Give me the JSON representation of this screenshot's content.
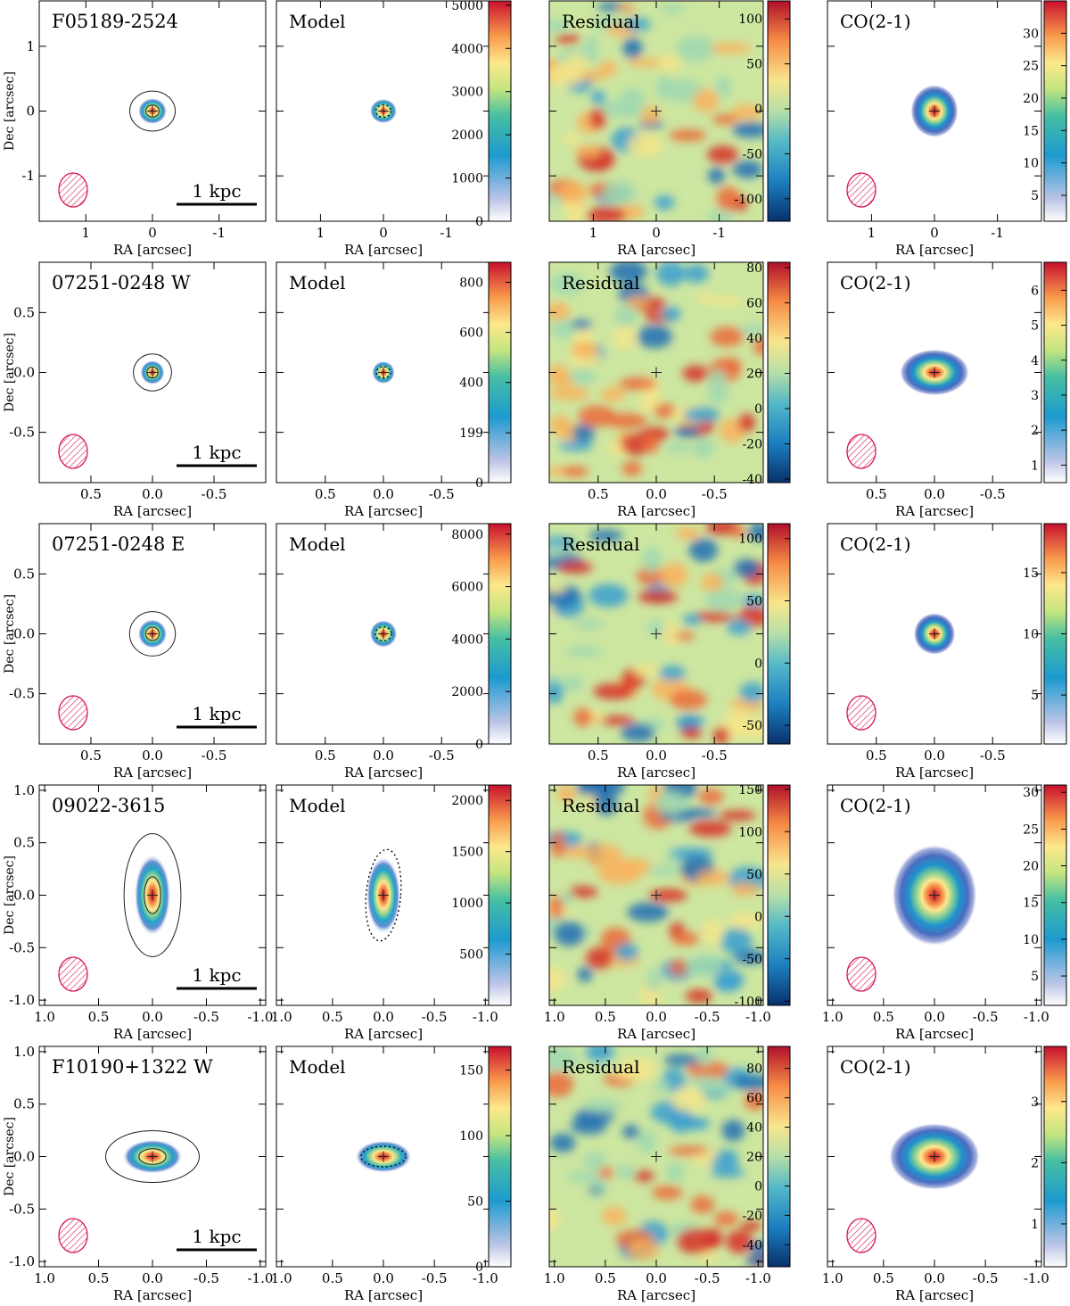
{
  "chart_data": {
    "type": "heatmap",
    "description_title": "",
    "column_titles": [
      "Model",
      "Residual",
      "CO(2-1)"
    ],
    "xlabel": "RA [arcsec]",
    "ylabel": "Dec [arcsec]",
    "scale_bar_label": "1 kpc",
    "rows": [
      {
        "name": "F05189-2524",
        "xlim": [
          1.7,
          -1.7
        ],
        "ylim": [
          -1.7,
          1.7
        ],
        "xticks": [
          1,
          0,
          -1
        ],
        "xtick_labels": [
          "1",
          "0",
          "-1"
        ],
        "yticks": [
          1,
          0,
          -1
        ],
        "ytick_labels": [
          "1",
          "0",
          "-1"
        ],
        "colorbars": {
          "continuum": {
            "min": 0,
            "max": 5100,
            "ticks": [
              0,
              1000,
              2000,
              3000,
              4000,
              5000
            ],
            "labels": [
              "0",
              "1000",
              "2000",
              "3000",
              "4000",
              "5000"
            ]
          },
          "residual": {
            "min": -125,
            "max": 120,
            "ticks": [
              -100,
              -50,
              0,
              50,
              100
            ],
            "labels": [
              "-100",
              "-50",
              "0",
              "50",
              "100"
            ]
          },
          "co": {
            "min": 1,
            "max": 35,
            "ticks": [
              5,
              10,
              15,
              20,
              25,
              30
            ],
            "labels": [
              "5",
              "10",
              "15",
              "20",
              "25",
              "30"
            ]
          }
        },
        "source": {
          "sx": 0.22,
          "sy": 0.2,
          "pa": 0
        },
        "model_ellipse": {
          "a": 0.12,
          "b": 0.1,
          "pa": 0
        },
        "co": {
          "sx": 0.38,
          "sy": 0.42
        }
      },
      {
        "name": "07251-0248 W",
        "xlim": [
          0.92,
          -0.92
        ],
        "ylim": [
          -0.92,
          0.92
        ],
        "xticks": [
          0.5,
          0,
          -0.5
        ],
        "xtick_labels": [
          "0.5",
          "0.0",
          "-0.5"
        ],
        "yticks": [
          0.5,
          0,
          -0.5
        ],
        "ytick_labels": [
          "0.5",
          "0.0",
          "-0.5"
        ],
        "colorbars": {
          "continuum": {
            "min": 0,
            "max": 880,
            "ticks": [
              0,
              199,
              400,
              600,
              800
            ],
            "labels": [
              "0",
              "199",
              "400",
              "600",
              "800"
            ]
          },
          "residual": {
            "min": -42,
            "max": 83,
            "ticks": [
              -40,
              -20,
              0,
              20,
              40,
              60,
              80
            ],
            "labels": [
              "-40",
              "-20",
              "0",
              "20",
              "40",
              "60",
              "80"
            ]
          },
          "co": {
            "min": 0.5,
            "max": 6.8,
            "ticks": [
              1,
              2,
              3,
              4,
              5,
              6
            ],
            "labels": [
              "1",
              "2",
              "3",
              "4",
              "5",
              "6"
            ]
          }
        },
        "source": {
          "sx": 0.1,
          "sy": 0.1,
          "pa": 0
        },
        "model_ellipse": {
          "a": 0.06,
          "b": 0.05,
          "pa": 0
        },
        "co": {
          "sx": 0.3,
          "sy": 0.2
        }
      },
      {
        "name": "07251-0248 E",
        "xlim": [
          0.92,
          -0.92
        ],
        "ylim": [
          -0.92,
          0.92
        ],
        "xticks": [
          0.5,
          0,
          -0.5
        ],
        "xtick_labels": [
          "0.5",
          "0.0",
          "-0.5"
        ],
        "yticks": [
          0.5,
          0,
          -0.5
        ],
        "ytick_labels": [
          "0.5",
          "0.0",
          "-0.5"
        ],
        "colorbars": {
          "continuum": {
            "min": 0,
            "max": 8400,
            "ticks": [
              0,
              2000,
              4000,
              6000,
              8000
            ],
            "labels": [
              "0",
              "2000",
              "4000",
              "6000",
              "8000"
            ]
          },
          "residual": {
            "min": -65,
            "max": 112,
            "ticks": [
              -50,
              0,
              50,
              100
            ],
            "labels": [
              "-50",
              "0",
              "50",
              "100"
            ]
          },
          "co": {
            "min": 1,
            "max": 19,
            "ticks": [
              5,
              10,
              15
            ],
            "labels": [
              "5",
              "10",
              "15"
            ]
          }
        },
        "source": {
          "sx": 0.12,
          "sy": 0.12,
          "pa": 0
        },
        "model_ellipse": {
          "a": 0.07,
          "b": 0.06,
          "pa": 0
        },
        "co": {
          "sx": 0.18,
          "sy": 0.18
        }
      },
      {
        "name": "09022-3615",
        "xlim": [
          1.05,
          -1.05
        ],
        "ylim": [
          -1.05,
          1.05
        ],
        "xticks": [
          1,
          0.5,
          0,
          -0.5,
          -1
        ],
        "xtick_labels": [
          "1.0",
          "0.5",
          "0.0",
          "-0.5",
          "-1.0"
        ],
        "yticks": [
          1,
          0.5,
          0,
          -0.5,
          -1
        ],
        "ytick_labels": [
          "1.0",
          "0.5",
          "0.0",
          "-0.5",
          "-1.0"
        ],
        "colorbars": {
          "continuum": {
            "min": 0,
            "max": 2150,
            "ticks": [
              500,
              1000,
              1500,
              2000
            ],
            "labels": [
              "500",
              "1000",
              "1500",
              "2000"
            ]
          },
          "residual": {
            "min": -105,
            "max": 155,
            "ticks": [
              -100,
              -50,
              0,
              50,
              100,
              150
            ],
            "labels": [
              "-100",
              "-50",
              "0",
              "50",
              "100",
              "150"
            ]
          },
          "co": {
            "min": 1,
            "max": 31,
            "ticks": [
              5,
              10,
              15,
              20,
              25,
              30
            ],
            "labels": [
              "5",
              "10",
              "15",
              "20",
              "25",
              "30"
            ]
          }
        },
        "source": {
          "sx": 0.17,
          "sy": 0.38,
          "pa": 0
        },
        "model_ellipse": {
          "a": 0.17,
          "b": 0.45,
          "pa": 5
        },
        "co": {
          "sx": 0.42,
          "sy": 0.5
        }
      },
      {
        "name": "F10190+1322 W",
        "xlim": [
          1.05,
          -1.05
        ],
        "ylim": [
          -1.05,
          1.05
        ],
        "xticks": [
          1,
          0.5,
          0,
          -0.5,
          -1
        ],
        "xtick_labels": [
          "1.0",
          "0.5",
          "0.0",
          "-0.5",
          "-1.0"
        ],
        "yticks": [
          1,
          0.5,
          0,
          -0.5,
          -1
        ],
        "ytick_labels": [
          "1.0",
          "0.5",
          "0.0",
          "-0.5",
          "-1.0"
        ],
        "colorbars": {
          "continuum": {
            "min": 0,
            "max": 168,
            "ticks": [
              0,
              50,
              100,
              150
            ],
            "labels": [
              "0",
              "50",
              "100",
              "150"
            ]
          },
          "residual": {
            "min": -55,
            "max": 95,
            "ticks": [
              -40,
              -20,
              0,
              20,
              40,
              60,
              80
            ],
            "labels": [
              "-40",
              "-20",
              "0",
              "20",
              "40",
              "60",
              "80"
            ]
          },
          "co": {
            "min": 0.3,
            "max": 3.9,
            "ticks": [
              1,
              2,
              3
            ],
            "labels": [
              "1",
              "2",
              "3"
            ]
          }
        },
        "source": {
          "sx": 0.28,
          "sy": 0.16,
          "pa": 0
        },
        "model_ellipse": {
          "a": 0.22,
          "b": 0.1,
          "pa": 0
        },
        "co": {
          "sx": 0.45,
          "sy": 0.33
        }
      }
    ]
  }
}
